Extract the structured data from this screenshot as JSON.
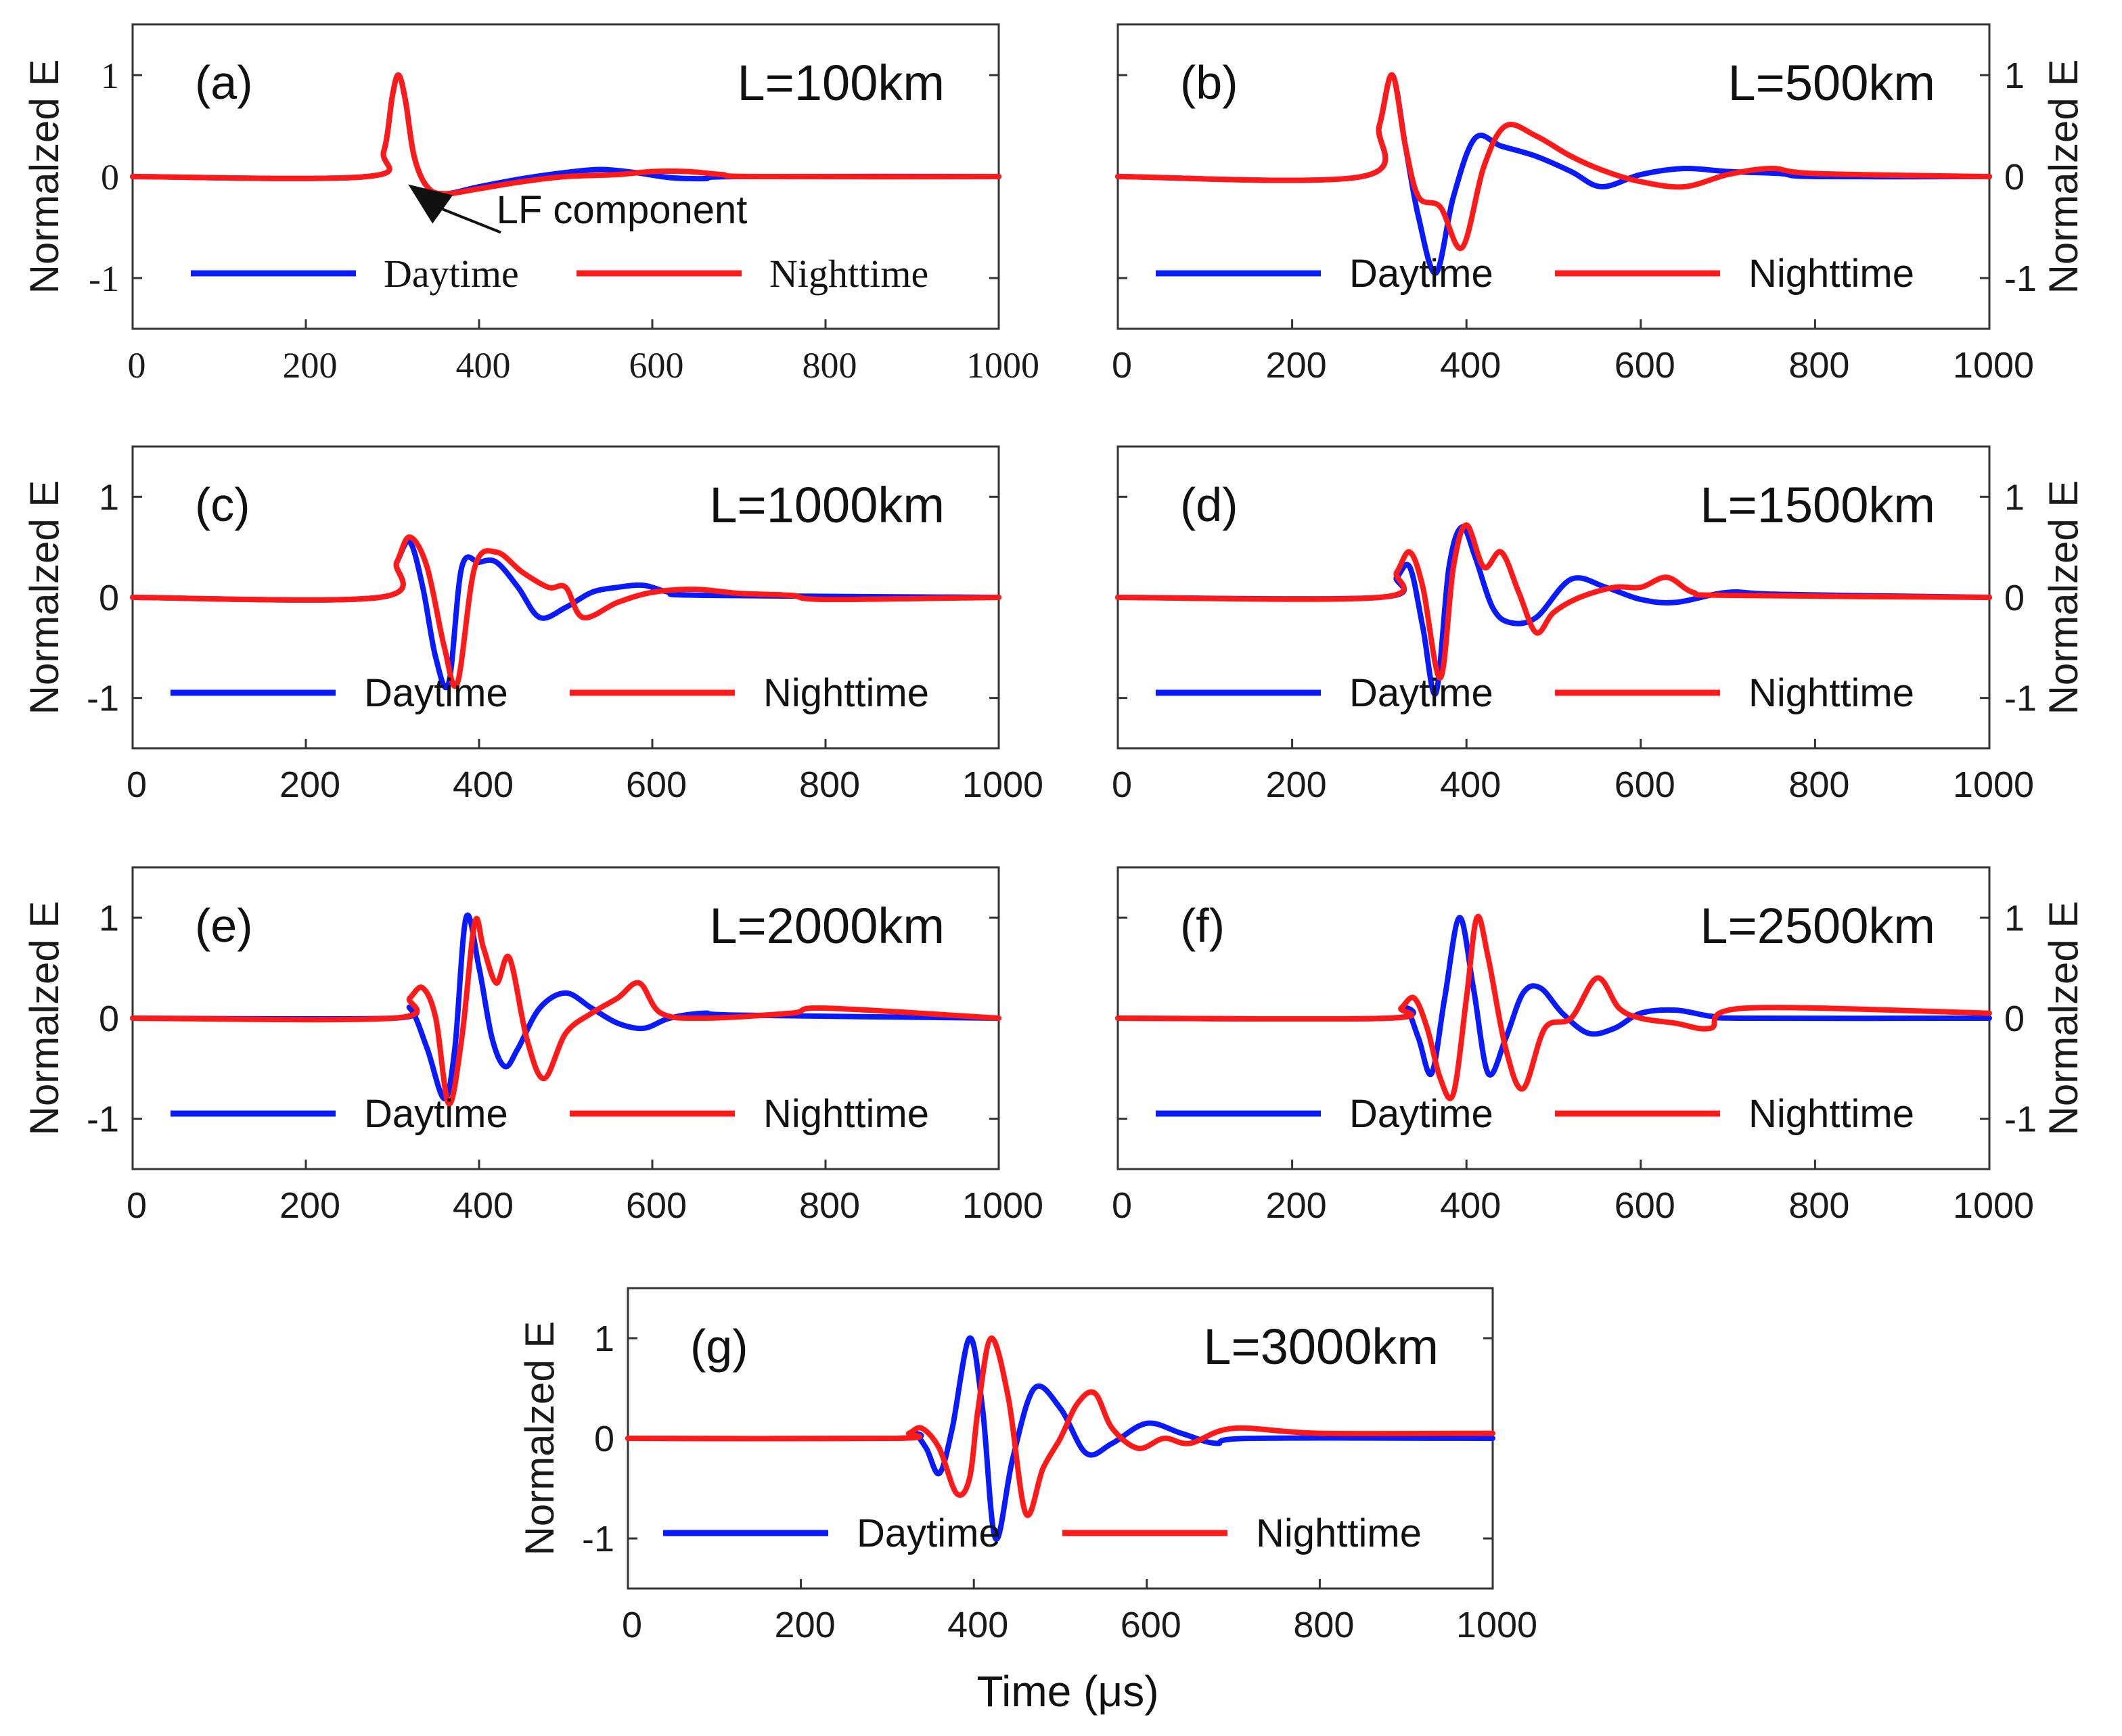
{
  "figure": {
    "xlabel": "Time (μs)",
    "legend": {
      "daytime": "Daytime",
      "nighttime": "Nighttime"
    },
    "annotation": "LF component",
    "colors": {
      "daytime": "#0a1aff",
      "nighttime": "#ff1a1a"
    }
  },
  "chart_data": [
    {
      "id": "a",
      "panel_label": "(a)",
      "distance_label": "L=100km",
      "type": "line",
      "xlim": [
        0,
        1000
      ],
      "ylim": [
        -1.5,
        1.5
      ],
      "xticks": [
        "0",
        "200",
        "400",
        "600",
        "800",
        "1000"
      ],
      "yticks": [
        "1",
        "0",
        "-1"
      ],
      "ylabel": "Normalzed E",
      "ylabel_side": "left",
      "legend_placement": "bottom",
      "series": [
        {
          "name": "Daytime",
          "x": [
            0,
            270,
            290,
            300,
            307,
            315,
            325,
            340,
            360,
            400,
            450,
            500,
            540,
            580,
            620,
            660,
            700,
            1000
          ],
          "y": [
            0,
            0,
            0.25,
            0.8,
            1.0,
            0.75,
            0.2,
            -0.1,
            -0.17,
            -0.1,
            -0.02,
            0.04,
            0.07,
            0.04,
            -0.01,
            -0.02,
            0,
            0
          ]
        },
        {
          "name": "Nighttime",
          "x": [
            0,
            270,
            290,
            300,
            307,
            315,
            325,
            340,
            360,
            400,
            450,
            500,
            560,
            600,
            640,
            680,
            720,
            1000
          ],
          "y": [
            0,
            0,
            0.25,
            0.8,
            1.0,
            0.75,
            0.2,
            -0.1,
            -0.17,
            -0.12,
            -0.05,
            0.0,
            0.02,
            0.05,
            0.05,
            0.02,
            0,
            0
          ]
        }
      ]
    },
    {
      "id": "b",
      "panel_label": "(b)",
      "distance_label": "L=500km",
      "type": "line",
      "xlim": [
        0,
        1000
      ],
      "ylim": [
        -1.5,
        1.5
      ],
      "xticks": [
        "0",
        "200",
        "400",
        "600",
        "800",
        "1000"
      ],
      "yticks": [
        "1",
        "0",
        "-1"
      ],
      "ylabel": "Normalzed E",
      "ylabel_side": "right",
      "legend_placement": "bottom",
      "series": [
        {
          "name": "Daytime",
          "x": [
            0,
            280,
            300,
            315,
            330,
            345,
            365,
            385,
            410,
            440,
            480,
            520,
            555,
            600,
            650,
            700,
            760,
            800,
            1000
          ],
          "y": [
            0,
            0,
            0.5,
            1.0,
            0.3,
            -0.4,
            -0.95,
            -0.2,
            0.38,
            0.3,
            0.2,
            0.05,
            -0.1,
            0.02,
            0.08,
            0.05,
            0.03,
            0,
            0
          ]
        },
        {
          "name": "Nighttime",
          "x": [
            0,
            280,
            300,
            315,
            330,
            345,
            370,
            395,
            420,
            445,
            480,
            520,
            560,
            600,
            650,
            700,
            750,
            800,
            1000
          ],
          "y": [
            0,
            0,
            0.5,
            1.0,
            0.3,
            -0.2,
            -0.3,
            -0.7,
            0.1,
            0.5,
            0.4,
            0.2,
            0.05,
            -0.05,
            -0.1,
            0.02,
            0.08,
            0.03,
            0
          ]
        }
      ]
    },
    {
      "id": "c",
      "panel_label": "(c)",
      "distance_label": "L=1000km",
      "type": "line",
      "xlim": [
        0,
        1000
      ],
      "ylim": [
        -1.5,
        1.5
      ],
      "xticks": [
        "0",
        "200",
        "400",
        "600",
        "800",
        "1000"
      ],
      "yticks": [
        "1",
        "0",
        "-1"
      ],
      "ylabel": "Normalzed E",
      "ylabel_side": "left",
      "legend_placement": "bottom",
      "series": [
        {
          "name": "Daytime",
          "x": [
            0,
            285,
            305,
            320,
            335,
            350,
            365,
            380,
            400,
            420,
            445,
            470,
            500,
            530,
            560,
            590,
            620,
            660,
            1000
          ],
          "y": [
            0,
            0,
            0.35,
            0.55,
            0.1,
            -0.6,
            -0.85,
            0.3,
            0.35,
            0.35,
            0.1,
            -0.2,
            -0.1,
            0.05,
            0.1,
            0.12,
            0.05,
            0.02,
            0
          ]
        },
        {
          "name": "Nighttime",
          "x": [
            0,
            285,
            305,
            320,
            340,
            360,
            375,
            395,
            420,
            450,
            480,
            500,
            520,
            560,
            600,
            650,
            700,
            760,
            800,
            1000
          ],
          "y": [
            0,
            0,
            0.35,
            0.6,
            0.3,
            -0.5,
            -0.85,
            0.3,
            0.45,
            0.25,
            0.1,
            0.1,
            -0.2,
            -0.05,
            0.05,
            0.08,
            0.04,
            0.02,
            -0.02,
            0
          ]
        }
      ]
    },
    {
      "id": "d",
      "panel_label": "(d)",
      "distance_label": "L=1500km",
      "type": "line",
      "xlim": [
        0,
        1000
      ],
      "ylim": [
        -1.5,
        1.5
      ],
      "xticks": [
        "0",
        "200",
        "400",
        "600",
        "800",
        "1000"
      ],
      "yticks": [
        "1",
        "0",
        "-1"
      ],
      "ylabel": "Normalzed E",
      "ylabel_side": "right",
      "legend_placement": "bottom",
      "series": [
        {
          "name": "Daytime",
          "x": [
            0,
            300,
            320,
            335,
            350,
            365,
            380,
            395,
            410,
            430,
            450,
            480,
            520,
            560,
            600,
            640,
            700,
            760,
            1000
          ],
          "y": [
            0,
            0,
            0.2,
            0.3,
            -0.3,
            -0.95,
            0.3,
            0.7,
            0.4,
            -0.1,
            -0.25,
            -0.2,
            0.18,
            0.1,
            -0.02,
            -0.05,
            0.05,
            0.03,
            0
          ]
        },
        {
          "name": "Nighttime",
          "x": [
            0,
            300,
            320,
            335,
            350,
            370,
            385,
            400,
            420,
            440,
            460,
            480,
            500,
            530,
            570,
            600,
            630,
            660,
            700,
            1000
          ],
          "y": [
            0,
            0,
            0.25,
            0.45,
            0.1,
            -0.8,
            0.3,
            0.72,
            0.3,
            0.45,
            0.05,
            -0.35,
            -0.15,
            0.0,
            0.1,
            0.1,
            0.2,
            0.05,
            0.02,
            0
          ]
        }
      ]
    },
    {
      "id": "e",
      "panel_label": "(e)",
      "distance_label": "L=2000km",
      "type": "line",
      "xlim": [
        0,
        1000
      ],
      "ylim": [
        -1.5,
        1.5
      ],
      "xticks": [
        "0",
        "200",
        "400",
        "600",
        "800",
        "1000"
      ],
      "yticks": [
        "1",
        "0",
        "-1"
      ],
      "ylabel": "Normalzed E",
      "ylabel_side": "left",
      "legend_placement": "bottom",
      "series": [
        {
          "name": "Daytime",
          "x": [
            0,
            300,
            320,
            340,
            360,
            372,
            385,
            400,
            415,
            430,
            445,
            470,
            500,
            530,
            560,
            590,
            620,
            660,
            700,
            1000
          ],
          "y": [
            0,
            0,
            0.1,
            -0.3,
            -0.8,
            -0.3,
            1.0,
            0.5,
            -0.2,
            -0.48,
            -0.3,
            0.1,
            0.25,
            0.1,
            -0.05,
            -0.1,
            0.0,
            0.05,
            0.03,
            0
          ]
        },
        {
          "name": "Nighttime",
          "x": [
            0,
            300,
            320,
            335,
            350,
            365,
            380,
            395,
            405,
            420,
            435,
            455,
            475,
            500,
            530,
            560,
            585,
            610,
            660,
            760,
            800,
            1000
          ],
          "y": [
            0,
            0,
            0.2,
            0.3,
            0.0,
            -0.85,
            -0.2,
            0.95,
            0.7,
            0.35,
            0.6,
            -0.2,
            -0.6,
            -0.15,
            0.05,
            0.2,
            0.35,
            0.05,
            0.0,
            0.05,
            0.1,
            0
          ]
        }
      ]
    },
    {
      "id": "f",
      "panel_label": "(f)",
      "distance_label": "L=2500km",
      "type": "line",
      "xlim": [
        0,
        1000
      ],
      "ylim": [
        -1.5,
        1.5
      ],
      "xticks": [
        "0",
        "200",
        "400",
        "600",
        "800",
        "1000"
      ],
      "yticks": [
        "1",
        "0",
        "-1"
      ],
      "ylabel": "Normalzed E",
      "ylabel_side": "right",
      "legend_placement": "bottom",
      "series": [
        {
          "name": "Daytime",
          "x": [
            0,
            310,
            330,
            345,
            360,
            375,
            392,
            408,
            425,
            445,
            465,
            485,
            510,
            540,
            570,
            600,
            640,
            680,
            720,
            1000
          ],
          "y": [
            0,
            0,
            0.1,
            -0.2,
            -0.55,
            0.2,
            1.0,
            0.3,
            -0.55,
            -0.2,
            0.25,
            0.3,
            0.05,
            -0.15,
            -0.1,
            0.05,
            0.08,
            0.02,
            0.0,
            0
          ]
        },
        {
          "name": "Nighttime",
          "x": [
            0,
            310,
            325,
            340,
            355,
            370,
            385,
            400,
            412,
            425,
            445,
            465,
            490,
            520,
            550,
            575,
            600,
            640,
            680,
            720,
            1000
          ],
          "y": [
            0,
            0,
            0.1,
            0.2,
            -0.1,
            -0.6,
            -0.75,
            0.2,
            1.0,
            0.6,
            -0.3,
            -0.7,
            -0.1,
            0.0,
            0.4,
            0.1,
            0.0,
            -0.05,
            -0.1,
            0.1,
            0.05
          ]
        }
      ]
    },
    {
      "id": "g",
      "panel_label": "(g)",
      "distance_label": "L=3000km",
      "type": "line",
      "xlim": [
        0,
        1000
      ],
      "ylim": [
        -1.5,
        1.5
      ],
      "xticks": [
        "0",
        "200",
        "400",
        "600",
        "800",
        "1000"
      ],
      "yticks": [
        "1",
        "0",
        "-1"
      ],
      "ylabel": "Normalzed E",
      "ylabel_side": "left",
      "legend_placement": "bottom",
      "series": [
        {
          "name": "Daytime",
          "x": [
            0,
            310,
            330,
            345,
            360,
            375,
            395,
            410,
            425,
            445,
            470,
            500,
            530,
            560,
            600,
            640,
            680,
            720,
            1000
          ],
          "y": [
            0,
            0,
            0.05,
            -0.1,
            -0.35,
            0.1,
            1.0,
            0.3,
            -1.0,
            -0.2,
            0.5,
            0.3,
            -0.15,
            -0.05,
            0.15,
            0.05,
            -0.05,
            0.0,
            0
          ]
        },
        {
          "name": "Nighttime",
          "x": [
            0,
            310,
            325,
            340,
            360,
            380,
            395,
            405,
            420,
            440,
            460,
            480,
            500,
            520,
            540,
            560,
            590,
            620,
            650,
            700,
            800,
            1000
          ],
          "y": [
            0,
            0,
            0.05,
            0.1,
            -0.1,
            -0.55,
            -0.4,
            0.3,
            1.0,
            0.4,
            -0.75,
            -0.3,
            0.0,
            0.35,
            0.45,
            0.1,
            -0.1,
            0.0,
            -0.05,
            0.1,
            0.05,
            0.05
          ]
        }
      ]
    }
  ]
}
